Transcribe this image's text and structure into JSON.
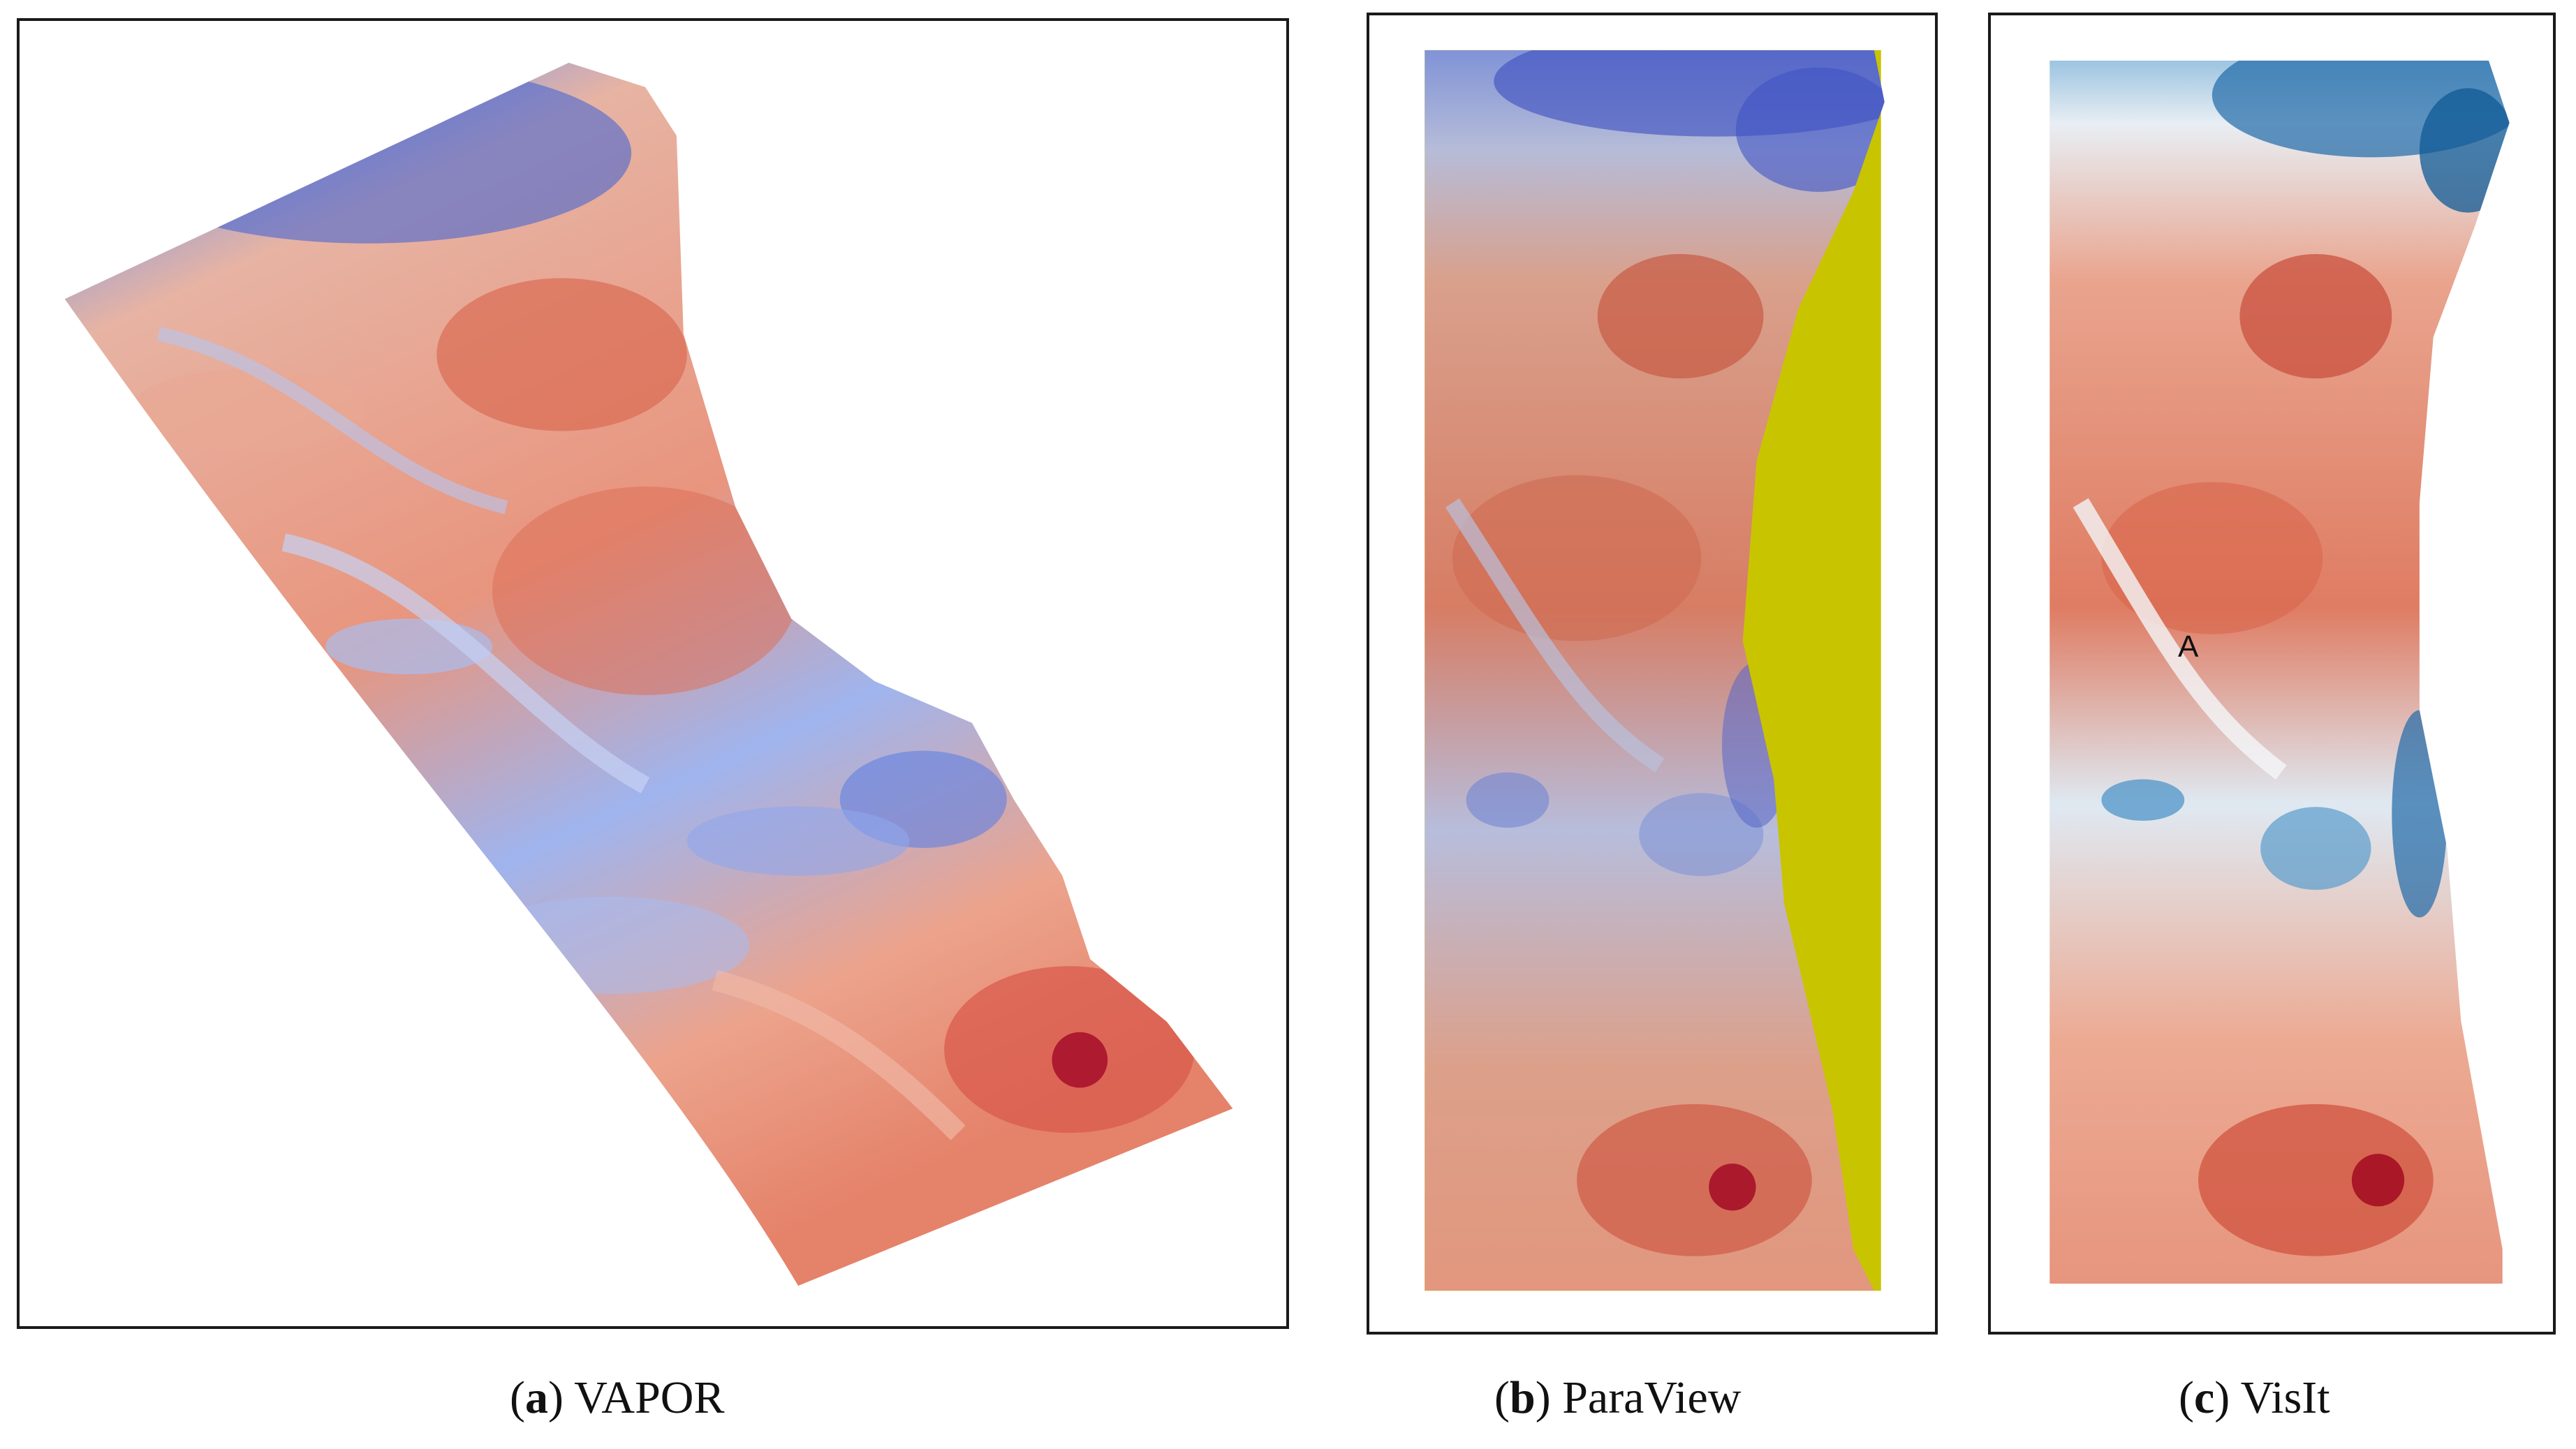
{
  "panels": [
    {
      "id": "a",
      "tool": "VAPOR",
      "colors": {
        "cool": "#3f63d8",
        "neutral": "#d9dbe6",
        "warm": "#e07a62",
        "hot": "#b40426"
      }
    },
    {
      "id": "b",
      "tool": "ParaView",
      "colors": {
        "cool": "#3b4cc0",
        "neutral": "#c9ccd6",
        "warm": "#d9735b",
        "hot": "#a30a25",
        "land": "#c9c400"
      }
    },
    {
      "id": "c",
      "tool": "VisIt",
      "colors": {
        "cool": "#0f5a96",
        "neutral": "#f3f5f8",
        "warm": "#e07a62",
        "hot": "#a50f22"
      }
    }
  ],
  "annotations": {
    "marker_label": "A"
  }
}
